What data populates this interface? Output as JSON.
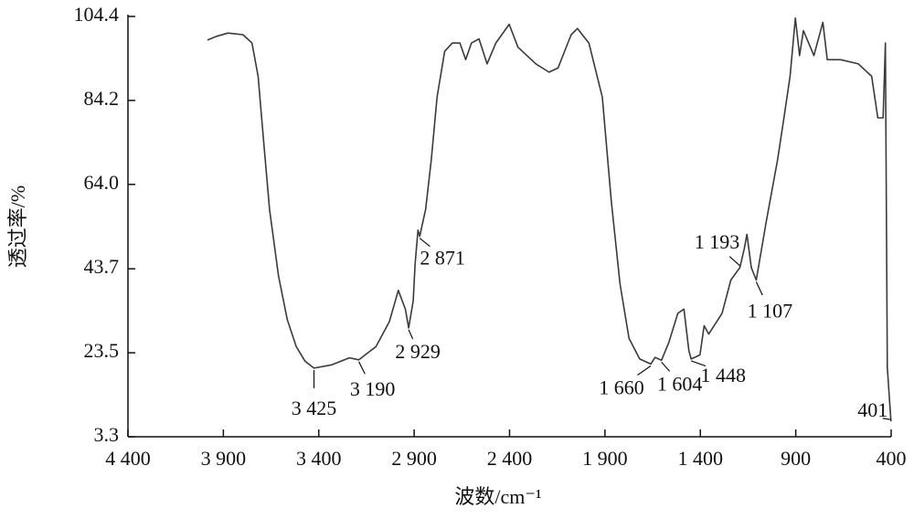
{
  "chart_data": {
    "type": "line",
    "xlabel": "波数/cm⁻¹",
    "ylabel": "透过率/%",
    "xlim": [
      4400,
      400
    ],
    "ylim": [
      3.3,
      104.4
    ],
    "xticks": [
      {
        "value": 4400,
        "label": "4 400"
      },
      {
        "value": 3900,
        "label": "3 900"
      },
      {
        "value": 3400,
        "label": "3 400"
      },
      {
        "value": 2900,
        "label": "2 900"
      },
      {
        "value": 2400,
        "label": "2 400"
      },
      {
        "value": 1900,
        "label": "1 900"
      },
      {
        "value": 1400,
        "label": "1 400"
      },
      900,
      400
    ],
    "yticks": [
      3.3,
      23.5,
      43.7,
      {
        "value": 64,
        "label": "64.0"
      },
      84.2,
      104.4
    ],
    "color": "#3a3a3a",
    "series": [
      {
        "name": "spectrum",
        "color": "#3a3a3a",
        "x": [
          3983,
          3937,
          3876,
          3797,
          3750,
          3718,
          3690,
          3658,
          3611,
          3565,
          3518,
          3472,
          3425,
          3332,
          3239,
          3190,
          3100,
          3030,
          2983,
          2946,
          2929,
          2905,
          2895,
          2880,
          2871,
          2840,
          2810,
          2780,
          2740,
          2700,
          2660,
          2630,
          2600,
          2560,
          2518,
          2472,
          2402,
          2356,
          2262,
          2193,
          2146,
          2077,
          2044,
          1984,
          1914,
          1867,
          1821,
          1774,
          1718,
          1660,
          1637,
          1604,
          1565,
          1518,
          1486,
          1460,
          1448,
          1402,
          1380,
          1356,
          1286,
          1240,
          1193,
          1170,
          1156,
          1133,
          1107,
          1055,
          995,
          962,
          930,
          902,
          880,
          860,
          805,
          758,
          735,
          665,
          572,
          502,
          470,
          442,
          430,
          420,
          401
        ],
        "values": [
          98.7,
          99.6,
          100.4,
          100,
          98,
          90,
          75,
          58,
          42,
          31.5,
          25,
          21.5,
          19.8,
          20.6,
          22.3,
          21.8,
          25,
          31,
          38.5,
          34,
          29.5,
          36,
          45,
          53,
          51.5,
          58,
          70,
          85,
          96,
          98,
          98,
          94,
          98,
          99,
          93,
          98,
          102.5,
          97,
          93,
          91,
          92,
          100,
          101.5,
          98,
          85,
          60,
          40,
          27,
          22,
          20.8,
          22.4,
          21.7,
          26,
          33,
          34,
          24,
          22,
          23,
          30,
          28,
          33,
          41,
          44,
          48.5,
          52,
          44,
          41,
          55,
          70,
          80,
          90,
          104,
          95,
          101,
          95,
          103,
          94,
          94,
          93,
          90,
          80,
          80,
          98,
          20,
          7
        ]
      }
    ],
    "annotations": [
      {
        "label": "3 425",
        "x": 3425,
        "y": 19.8
      },
      {
        "label": "3 190",
        "x": 3190,
        "y": 21.8
      },
      {
        "label": "2 929",
        "x": 2929,
        "y": 29.5
      },
      {
        "label": "2 871",
        "x": 2871,
        "y": 51.5
      },
      {
        "label": "1 660",
        "x": 1660,
        "y": 20.8
      },
      {
        "label": "1 604",
        "x": 1604,
        "y": 21.7
      },
      {
        "label": "1 448",
        "x": 1448,
        "y": 22
      },
      {
        "label": "1 193",
        "x": 1193,
        "y": 44
      },
      {
        "label": "1 107",
        "x": 1107,
        "y": 41
      },
      {
        "label": "401",
        "x": 401,
        "y": 7
      }
    ]
  }
}
